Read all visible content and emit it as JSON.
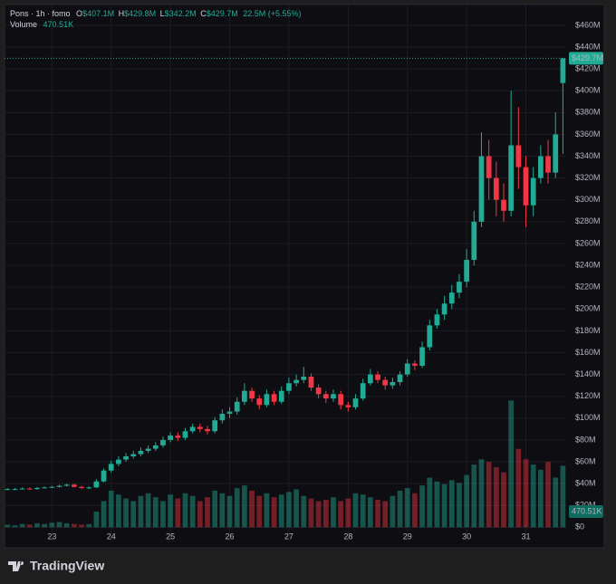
{
  "chart_data": {
    "type": "candlestick",
    "title": "Pons · 1h · fomo",
    "header": [
      {
        "label": "O",
        "value": "$407.1M"
      },
      {
        "label": "H",
        "value": "$429.8M"
      },
      {
        "label": "L",
        "value": "$342.2M"
      },
      {
        "label": "C",
        "value": "$429.7M"
      }
    ],
    "change": "22.5M (+5.55%)",
    "volume_title": "Volume",
    "volume_value": "470.51K",
    "last_price_label": "$429.7M",
    "brand": "TradingView",
    "colors": {
      "up": "#22ab94",
      "down": "#f23645"
    },
    "grid": true,
    "x": [
      22.25,
      22.375,
      22.5,
      22.625,
      22.75,
      22.875,
      23,
      23.125,
      23.25,
      23.375,
      23.5,
      23.625,
      23.75,
      23.875,
      24,
      24.125,
      24.25,
      24.375,
      24.5,
      24.625,
      24.75,
      24.875,
      25,
      25.125,
      25.25,
      25.375,
      25.5,
      25.625,
      25.75,
      25.875,
      26,
      26.125,
      26.25,
      26.375,
      26.5,
      26.625,
      26.75,
      26.875,
      27,
      27.125,
      27.25,
      27.375,
      27.5,
      27.625,
      27.75,
      27.875,
      28,
      28.125,
      28.25,
      28.375,
      28.5,
      28.625,
      28.75,
      28.875,
      29,
      29.125,
      29.25,
      29.375,
      29.5,
      29.625,
      29.75,
      29.875,
      30,
      30.125,
      30.25,
      30.375,
      30.5,
      30.625,
      30.75,
      30.875,
      31,
      31.125,
      31.25,
      31.375,
      31.5,
      31.625
    ],
    "open": [
      34.5,
      35,
      35,
      35.5,
      35,
      36,
      36.5,
      37,
      38,
      39,
      37,
      36,
      36.5,
      42,
      52,
      58,
      62,
      65,
      67,
      70,
      72,
      75,
      80,
      84,
      82,
      88,
      92,
      90,
      88,
      98,
      104,
      106,
      115,
      125,
      118,
      112,
      122,
      115,
      125,
      132,
      135,
      138,
      128,
      122,
      118,
      122,
      112,
      110,
      118,
      132,
      140,
      135,
      130,
      133,
      140,
      150,
      148,
      165,
      185,
      195,
      205,
      215,
      225,
      245,
      280,
      340,
      320,
      300,
      290,
      350,
      330,
      295,
      320,
      340,
      325,
      407.1
    ],
    "high": [
      36,
      36,
      36.5,
      36.5,
      37,
      37.5,
      38,
      39,
      40,
      40,
      38,
      37.5,
      44,
      54,
      61,
      65,
      68,
      70,
      73,
      75,
      78,
      83,
      87,
      87,
      91,
      95,
      95,
      93,
      101,
      108,
      110,
      119,
      132,
      128,
      121,
      126,
      125,
      129,
      137,
      140,
      147,
      141,
      131,
      125,
      126,
      125,
      115,
      122,
      136,
      145,
      143,
      138,
      137,
      143,
      154,
      153,
      170,
      190,
      200,
      212,
      222,
      232,
      255,
      290,
      362,
      355,
      335,
      315,
      400,
      385,
      340,
      330,
      350,
      355,
      380,
      429.8
    ],
    "low": [
      34,
      34,
      34.5,
      34.5,
      34.5,
      35.5,
      36,
      36.5,
      37.5,
      36.5,
      35,
      35,
      36,
      41,
      50,
      56,
      60,
      63,
      65,
      68,
      70,
      73,
      78,
      79,
      80,
      86,
      87,
      85,
      86,
      95,
      100,
      103,
      112,
      115,
      108,
      110,
      112,
      113,
      122,
      129,
      132,
      125,
      118,
      114,
      115,
      108,
      106,
      108,
      116,
      130,
      132,
      126,
      127,
      130,
      138,
      144,
      146,
      162,
      182,
      190,
      200,
      210,
      220,
      240,
      275,
      300,
      285,
      280,
      285,
      310,
      275,
      285,
      315,
      315,
      320,
      342.2
    ],
    "close": [
      35,
      35,
      35.5,
      35,
      36,
      36.5,
      37,
      38,
      39,
      37,
      36,
      36.5,
      42,
      52,
      58,
      62,
      65,
      67,
      70,
      72,
      75,
      80,
      84,
      82,
      88,
      92,
      90,
      88,
      98,
      104,
      106,
      115,
      125,
      118,
      112,
      122,
      115,
      125,
      132,
      135,
      138,
      128,
      122,
      118,
      122,
      112,
      110,
      118,
      132,
      140,
      135,
      130,
      133,
      140,
      150,
      148,
      165,
      185,
      195,
      205,
      215,
      225,
      245,
      280,
      340,
      320,
      300,
      290,
      350,
      330,
      295,
      320,
      340,
      325,
      360,
      429.7
    ],
    "volume": [
      20,
      15,
      25,
      20,
      30,
      25,
      35,
      40,
      30,
      25,
      20,
      25,
      120,
      200,
      280,
      250,
      220,
      200,
      240,
      260,
      230,
      200,
      250,
      220,
      260,
      240,
      200,
      230,
      280,
      260,
      240,
      300,
      320,
      280,
      240,
      260,
      230,
      250,
      270,
      290,
      240,
      220,
      200,
      210,
      230,
      200,
      220,
      260,
      250,
      230,
      210,
      200,
      240,
      280,
      300,
      260,
      320,
      380,
      350,
      330,
      360,
      340,
      400,
      480,
      520,
      500,
      460,
      420,
      970,
      600,
      520,
      480,
      440,
      500,
      380,
      470.51
    ],
    "xlim": [
      22.2,
      31.68
    ],
    "xticks": [
      23,
      24,
      25,
      26,
      27,
      28,
      29,
      30,
      31
    ],
    "ylim": [
      -13,
      479
    ],
    "yticks": [
      {
        "value": 0,
        "label": "$0"
      },
      {
        "value": 20,
        "label": "$20M"
      },
      {
        "value": 40,
        "label": "$40M"
      },
      {
        "value": 60,
        "label": "$60M"
      },
      {
        "value": 80,
        "label": "$80M"
      },
      {
        "value": 100,
        "label": "$100M"
      },
      {
        "value": 120,
        "label": "$120M"
      },
      {
        "value": 140,
        "label": "$140M"
      },
      {
        "value": 160,
        "label": "$160M"
      },
      {
        "value": 180,
        "label": "$180M"
      },
      {
        "value": 200,
        "label": "$200M"
      },
      {
        "value": 220,
        "label": "$220M"
      },
      {
        "value": 240,
        "label": "$240M"
      },
      {
        "value": 260,
        "label": "$260M"
      },
      {
        "value": 280,
        "label": "$280M"
      },
      {
        "value": 300,
        "label": "$300M"
      },
      {
        "value": 320,
        "label": "$320M"
      },
      {
        "value": 340,
        "label": "$340M"
      },
      {
        "value": 360,
        "label": "$360M"
      },
      {
        "value": 380,
        "label": "$380M"
      },
      {
        "value": 400,
        "label": "$400M"
      },
      {
        "value": 420,
        "label": "$420M"
      },
      {
        "value": 440,
        "label": "$440M"
      },
      {
        "value": 460,
        "label": "$460M"
      }
    ],
    "y2lim": [
      0,
      4000
    ]
  }
}
